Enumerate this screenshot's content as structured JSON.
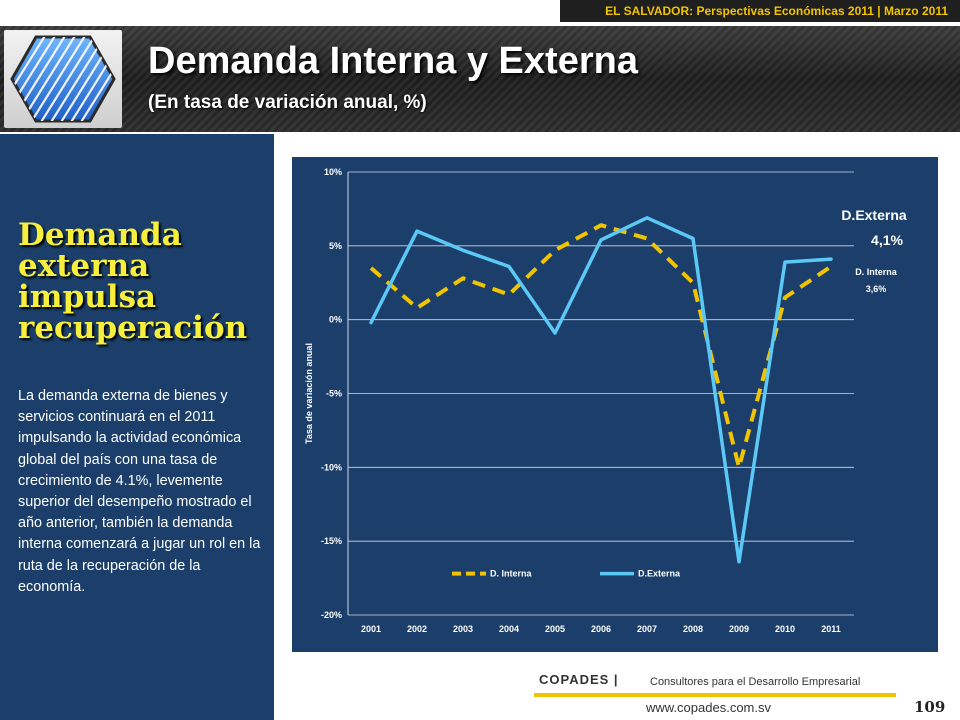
{
  "top_banner": "EL SALVADOR: Perspectivas Económicas 2011 | Marzo 2011",
  "header": {
    "title": "Demanda Interna y Externa",
    "subtitle": "(En tasa de variación anual, %)"
  },
  "left_panel": {
    "heading": "Demanda externa impulsa recuperación",
    "body": "La demanda externa de bienes y servicios continuará en el 2011 impulsando la actividad económica global del país con una tasa de crecimiento de 4.1%, levemente superior del desempeño mostrado el año anterior, también la demanda interna comenzará a jugar un rol en la ruta de la recuperación de la economía."
  },
  "chart_data": {
    "type": "line",
    "title": "",
    "xlabel": "",
    "ylabel": "Tasa de variación anual",
    "categories": [
      "2001",
      "2002",
      "2003",
      "2004",
      "2005",
      "2006",
      "2007",
      "2008",
      "2009",
      "2010",
      "2011"
    ],
    "y_ticks": [
      "10%",
      "5%",
      "0%",
      "-5%",
      "-10%",
      "-15%",
      "-20%"
    ],
    "ylim": [
      -20,
      10
    ],
    "grid": "horizontal",
    "legend": "bottom",
    "series": [
      {
        "name": "D. Interna",
        "style": "dashed",
        "color": "#f2c400",
        "values": [
          3.5,
          0.8,
          2.8,
          1.7,
          4.7,
          6.4,
          5.5,
          2.5,
          -10.0,
          1.5,
          3.6
        ]
      },
      {
        "name": "D.Externa",
        "style": "solid",
        "color": "#5bc8f5",
        "values": [
          -0.2,
          6.0,
          4.7,
          3.6,
          -0.9,
          5.4,
          6.9,
          5.5,
          -16.4,
          3.9,
          4.1
        ]
      }
    ],
    "annotations": [
      {
        "label": "D.Externa",
        "value": "4,1%",
        "series": "D.Externa"
      },
      {
        "label": "D. Interna",
        "value": "3,6%",
        "series": "D. Interna"
      }
    ]
  },
  "footer": {
    "brand": "COPADES |",
    "tagline": "Consultores para el Desarrollo Empresarial",
    "url": "www.copades.com.sv",
    "page_number": "109"
  }
}
